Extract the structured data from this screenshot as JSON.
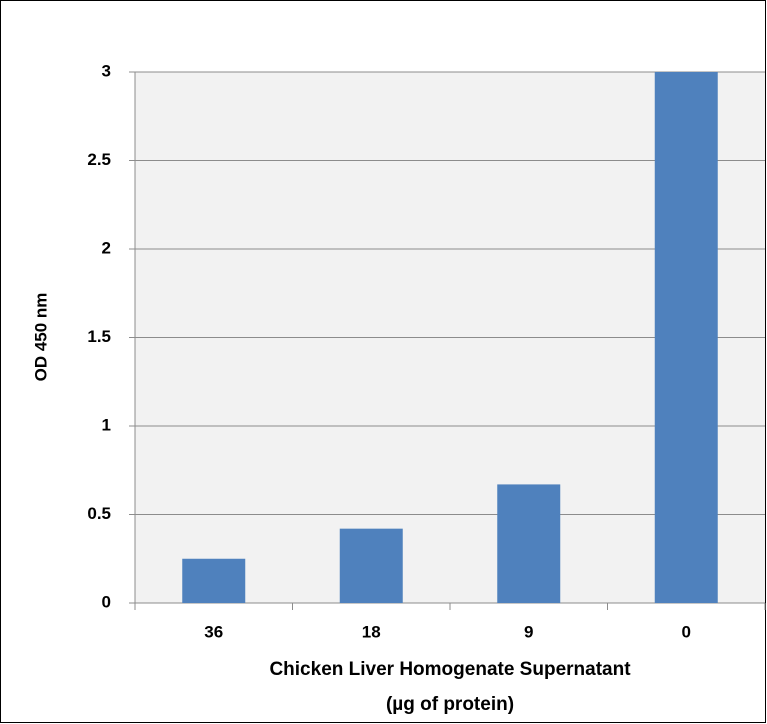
{
  "chart_data": {
    "type": "bar",
    "categories": [
      "36",
      "18",
      "9",
      "0"
    ],
    "values": [
      0.25,
      0.42,
      0.67,
      3
    ],
    "color": "#4f81bd",
    "ylabel": "OD 450 nm",
    "xlabel": [
      "Chicken Liver Homogenate Supernatant",
      "(µg of protein)"
    ],
    "ylim": [
      0,
      3
    ],
    "yticks": [
      0,
      0.5,
      1,
      1.5,
      2,
      2.5,
      3
    ],
    "grid": true
  }
}
